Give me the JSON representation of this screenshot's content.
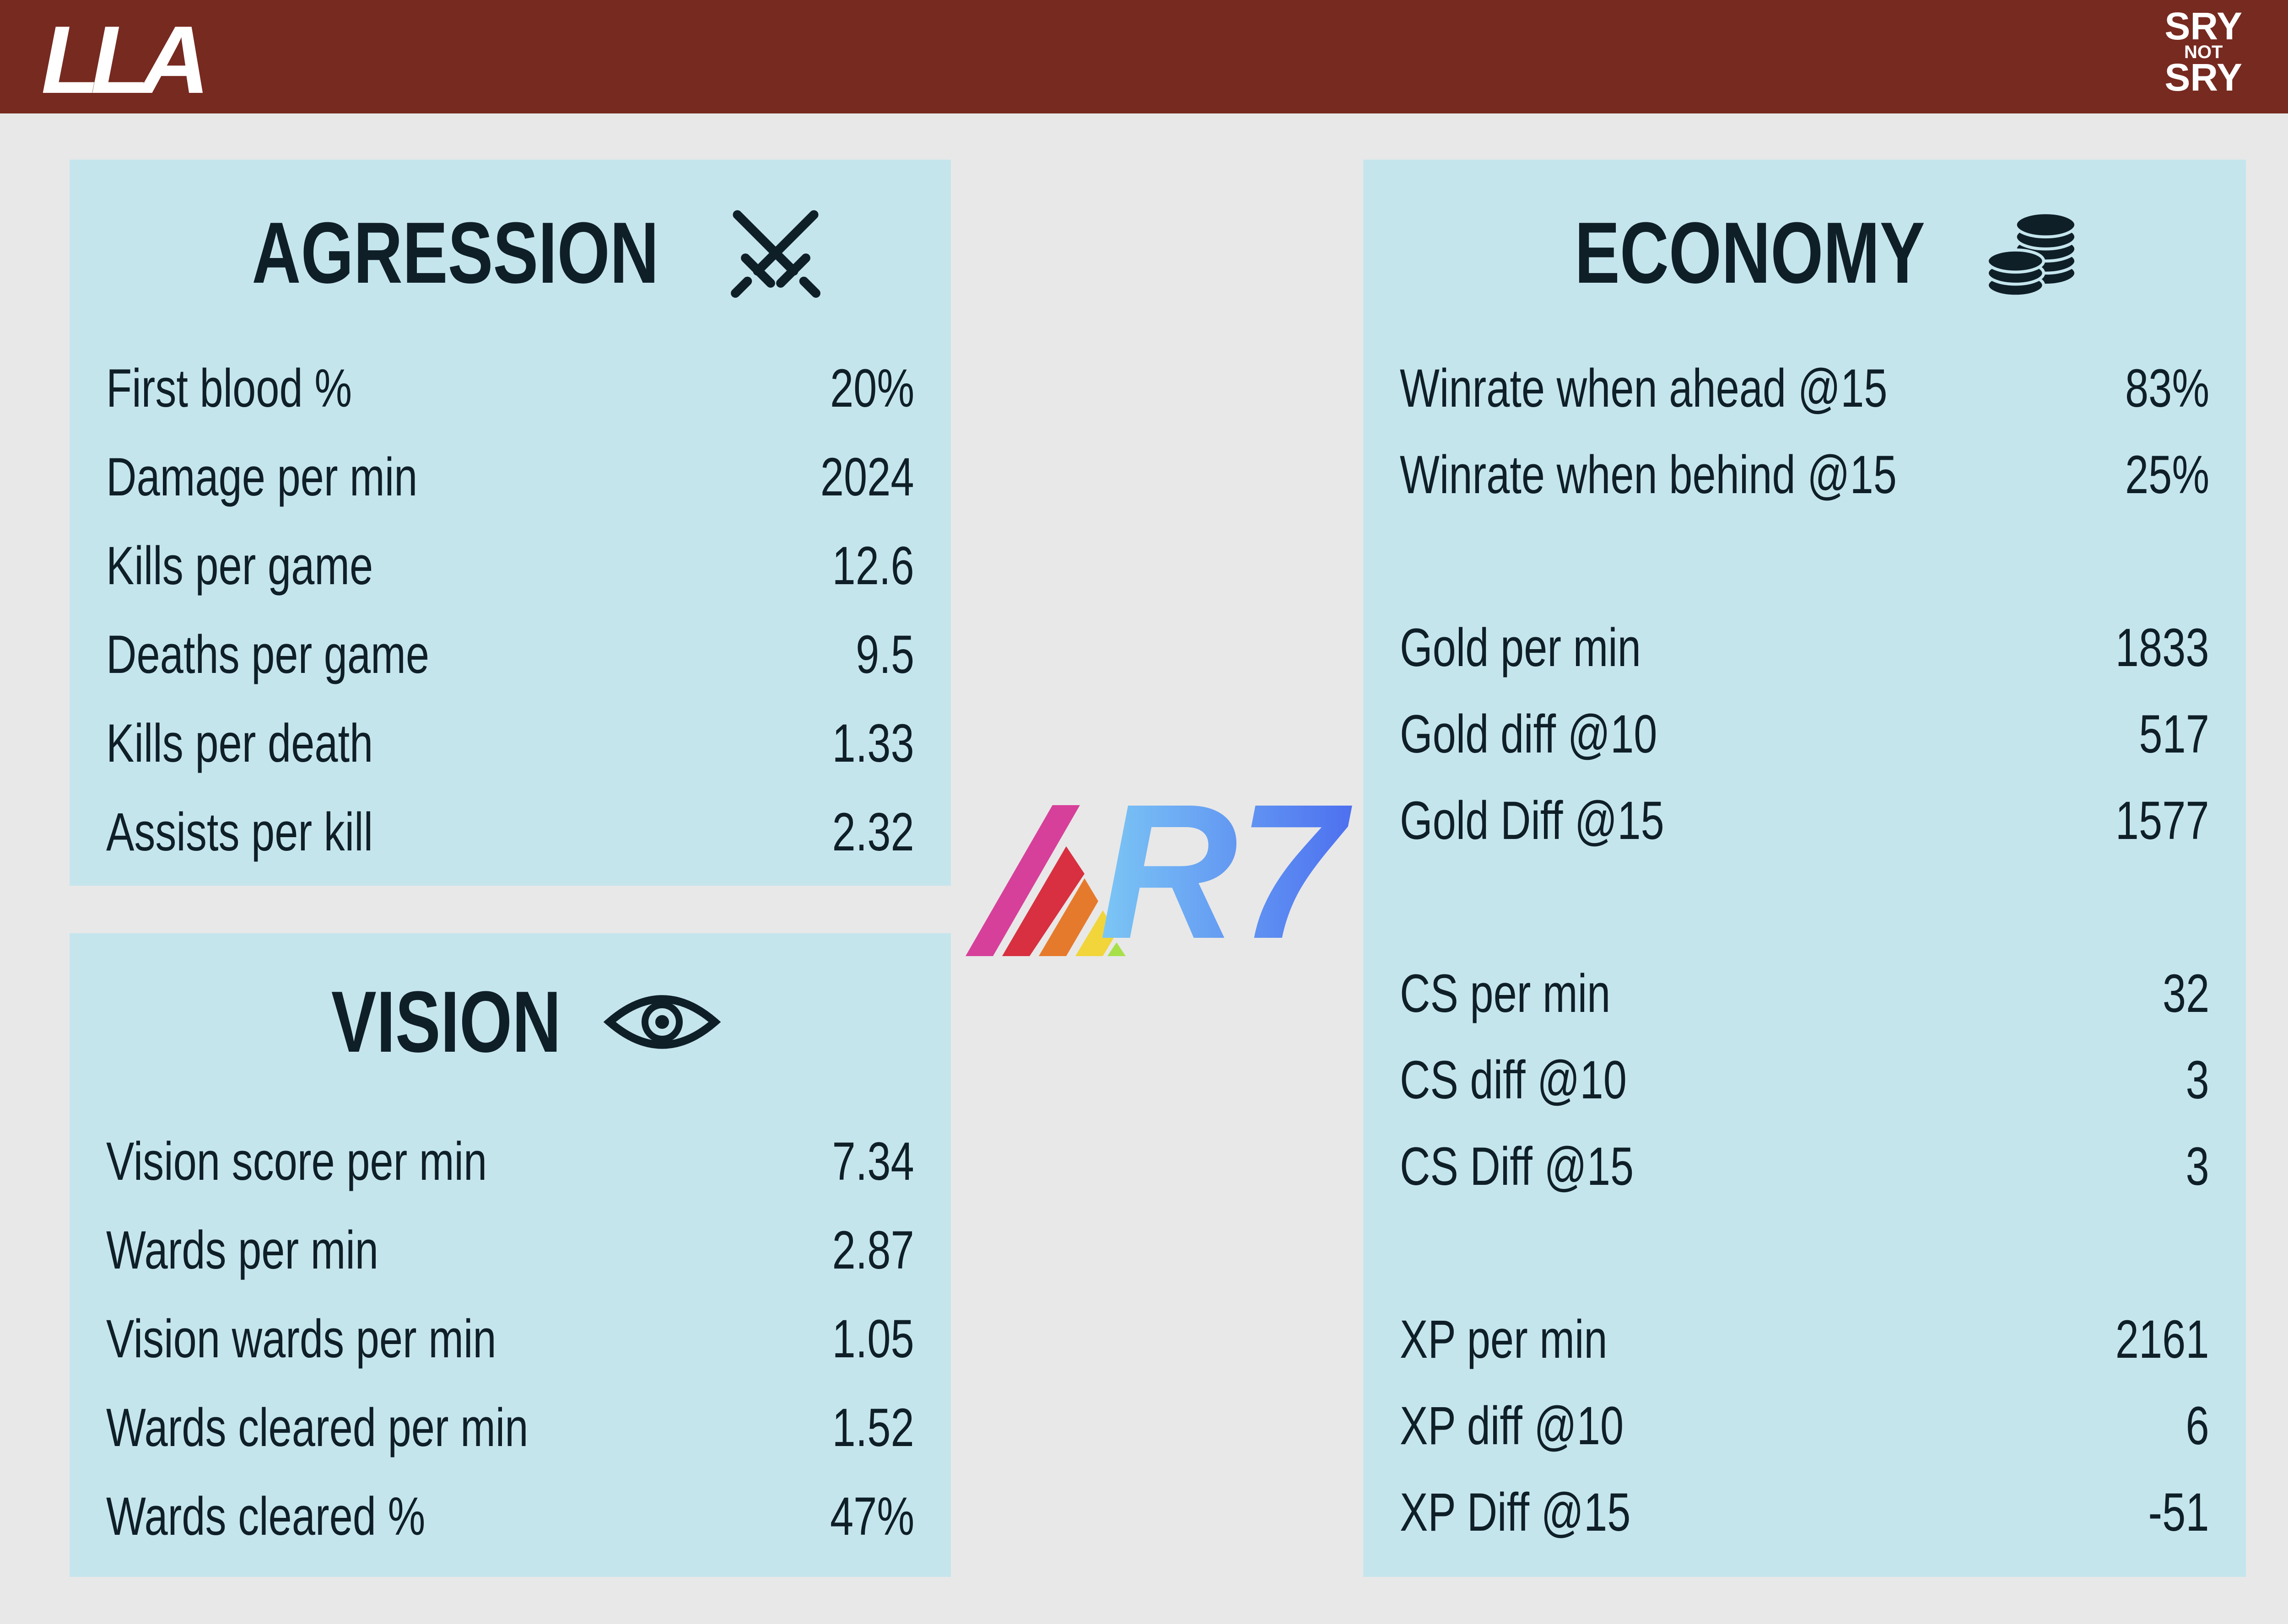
{
  "header": {
    "left_logo": "LLA",
    "right_logo": [
      "SRY",
      "NOT",
      "SRY"
    ]
  },
  "center_logo": "R7",
  "agression": {
    "title": "AGRESSION",
    "rows": [
      [
        "First blood %",
        "20%"
      ],
      [
        "Damage per min",
        "2024"
      ],
      [
        "Kills per game",
        "12.6"
      ],
      [
        "Deaths per game",
        "9.5"
      ],
      [
        "Kills per death",
        "1.33"
      ],
      [
        "Assists per kill",
        "2.32"
      ]
    ]
  },
  "vision": {
    "title": "VISION",
    "rows": [
      [
        "Vision score per min",
        "7.34"
      ],
      [
        "Wards per min",
        "2.87"
      ],
      [
        "Vision wards per min",
        "1.05"
      ],
      [
        "Wards cleared per min",
        "1.52"
      ],
      [
        "Wards cleared %",
        "47%"
      ]
    ]
  },
  "economy": {
    "title": "ECONOMY",
    "groups": [
      [
        [
          "Winrate when ahead @15",
          "83%"
        ],
        [
          "Winrate when behind @15",
          "25%"
        ]
      ],
      [
        [
          "Gold per min",
          "1833"
        ],
        [
          "Gold diff @10",
          "517"
        ],
        [
          "Gold Diff @15",
          "1577"
        ]
      ],
      [
        [
          "CS per min",
          "32"
        ],
        [
          "CS diff @10",
          "3"
        ],
        [
          "CS Diff @15",
          "3"
        ]
      ],
      [
        [
          "XP per min",
          "2161"
        ],
        [
          "XP diff @10",
          "6"
        ],
        [
          "XP Diff @15",
          "-51"
        ]
      ]
    ]
  }
}
